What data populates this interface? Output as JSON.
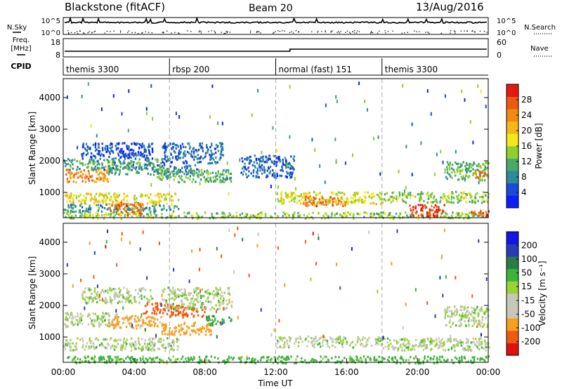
{
  "header": {
    "station": "Blackstone (fitACF)",
    "beam": "Beam 20",
    "date": "13/Aug/2016"
  },
  "left_labels": {
    "nsky": "N.Sky",
    "freq": "Freq.",
    "freq_unit": "[MHz]",
    "cpid": "CPID"
  },
  "right_labels": {
    "nsearch": "N.Search",
    "nave": "Nave"
  },
  "noise_panel": {
    "left_top": "10^5",
    "left_bottom": "10^0",
    "right_top": "10^5",
    "right_bottom": "10^0"
  },
  "freq_panel": {
    "left_ticks": [
      "18",
      "8"
    ],
    "right_ticks": [
      "60",
      "0"
    ]
  },
  "cpid_segments": [
    {
      "label": "themis 3300",
      "start_hour": 0
    },
    {
      "label": "rbsp 200",
      "start_hour": 6
    },
    {
      "label": "normal (fast) 151",
      "start_hour": 12
    },
    {
      "label": "themis 3300",
      "start_hour": 18
    }
  ],
  "colors": {
    "power_scale": [
      "#0b1eff",
      "#1a4ad8",
      "#2d8a9b",
      "#4aa86a",
      "#8fcf2e",
      "#f2e81a",
      "#f5b814",
      "#f08b12",
      "#ec5a10",
      "#e41a10"
    ],
    "velocity_scale": [
      "#e01010",
      "#f05a10",
      "#f7a020",
      "#c8c8b8",
      "#c8c8b8",
      "#9bd23c",
      "#3cb43c",
      "#2a7a4a",
      "#2a3cb4",
      "#1414e6"
    ]
  },
  "chart_data": [
    {
      "type": "heatmap",
      "title": "Power",
      "xlabel": "Time UT",
      "ylabel": "Slant Range [km]",
      "xlim": [
        0,
        24
      ],
      "ylim": [
        200,
        4600
      ],
      "x_ticks": [
        "00:00",
        "04:00",
        "08:00",
        "12:00",
        "16:00",
        "20:00",
        "00:00"
      ],
      "y_ticks": [
        "1000",
        "2000",
        "3000",
        "4000"
      ],
      "colorbar": {
        "label": "Power [dB]",
        "ticks": [
          "4",
          "8",
          "12",
          "16",
          "20",
          "24",
          "28"
        ],
        "range": [
          0,
          32
        ]
      },
      "bands": [
        {
          "t0": 0.0,
          "t1": 2.5,
          "r0": 1350,
          "r1": 1750,
          "value": 24
        },
        {
          "t0": 0.0,
          "t1": 5.5,
          "r0": 1750,
          "r1": 2100,
          "value": 10
        },
        {
          "t0": 1.0,
          "t1": 5.0,
          "r0": 2100,
          "r1": 2600,
          "value": 5
        },
        {
          "t0": 2.5,
          "t1": 7.5,
          "r0": 1600,
          "r1": 1900,
          "value": 9
        },
        {
          "t0": 5.0,
          "t1": 9.5,
          "r0": 1350,
          "r1": 1750,
          "value": 12
        },
        {
          "t0": 5.5,
          "t1": 9.0,
          "r0": 1950,
          "r1": 2600,
          "value": 6
        },
        {
          "t0": 0.0,
          "t1": 6.5,
          "r0": 650,
          "r1": 1000,
          "value": 18
        },
        {
          "t0": 0.0,
          "t1": 6.5,
          "r0": 400,
          "r1": 650,
          "value": 9
        },
        {
          "t0": 2.5,
          "t1": 4.5,
          "r0": 300,
          "r1": 700,
          "value": 26
        },
        {
          "t0": 0.0,
          "t1": 24.0,
          "r0": 200,
          "r1": 400,
          "value": 14
        },
        {
          "t0": 10.0,
          "t1": 13.0,
          "r0": 1500,
          "r1": 2200,
          "value": 6
        },
        {
          "t0": 12.0,
          "t1": 18.0,
          "r0": 650,
          "r1": 1050,
          "value": 17
        },
        {
          "t0": 13.5,
          "t1": 16.0,
          "r0": 600,
          "r1": 900,
          "value": 25
        },
        {
          "t0": 18.0,
          "t1": 24.0,
          "r0": 700,
          "r1": 1050,
          "value": 14
        },
        {
          "t0": 19.5,
          "t1": 21.5,
          "r0": 250,
          "r1": 650,
          "value": 29
        },
        {
          "t0": 21.5,
          "t1": 24.0,
          "r0": 1400,
          "r1": 2000,
          "value": 12
        },
        {
          "t0": 23.2,
          "t1": 24.0,
          "r0": 1450,
          "r1": 1700,
          "value": 24
        },
        {
          "t0": 23.0,
          "t1": 24.0,
          "r0": 250,
          "r1": 450,
          "value": 27
        }
      ]
    },
    {
      "type": "heatmap",
      "title": "Velocity",
      "xlabel": "Time UT",
      "ylabel": "Slant Range [km]",
      "xlim": [
        0,
        24
      ],
      "ylim": [
        200,
        4600
      ],
      "x_ticks": [
        "00:00",
        "04:00",
        "08:00",
        "12:00",
        "16:00",
        "20:00",
        "00:00"
      ],
      "y_ticks": [
        "1000",
        "2000",
        "3000",
        "4000"
      ],
      "colorbar": {
        "label": "Velocity [m s⁻¹]",
        "ticks": [
          "-200",
          "-100",
          "-50",
          "-15",
          "15",
          "50",
          "100",
          "200"
        ],
        "range": [
          -250,
          250
        ]
      },
      "bands": [
        {
          "t0": 0.0,
          "t1": 3.0,
          "r0": 1350,
          "r1": 1800,
          "value": 0
        },
        {
          "t0": 0.0,
          "t1": 6.5,
          "r0": 600,
          "r1": 1000,
          "value": 0
        },
        {
          "t0": 1.0,
          "t1": 5.0,
          "r0": 2100,
          "r1": 2600,
          "value": 0
        },
        {
          "t0": 2.5,
          "t1": 5.5,
          "r0": 1300,
          "r1": 1700,
          "value": -60
        },
        {
          "t0": 4.5,
          "t1": 6.5,
          "r0": 1750,
          "r1": 2100,
          "value": -150
        },
        {
          "t0": 6.0,
          "t1": 8.0,
          "r0": 1650,
          "r1": 2000,
          "value": -170
        },
        {
          "t0": 5.5,
          "t1": 8.5,
          "r0": 1100,
          "r1": 1500,
          "value": -70
        },
        {
          "t0": 5.5,
          "t1": 9.5,
          "r0": 1900,
          "r1": 2600,
          "value": 0
        },
        {
          "t0": 8.0,
          "t1": 9.5,
          "r0": 1400,
          "r1": 1700,
          "value": 40
        },
        {
          "t0": 0.0,
          "t1": 24.0,
          "r0": 200,
          "r1": 420,
          "value": 30
        },
        {
          "t0": 12.0,
          "t1": 18.0,
          "r0": 700,
          "r1": 1050,
          "value": 0
        },
        {
          "t0": 18.0,
          "t1": 24.0,
          "r0": 600,
          "r1": 1000,
          "value": 0
        },
        {
          "t0": 21.5,
          "t1": 24.0,
          "r0": 1350,
          "r1": 2000,
          "value": 0
        }
      ]
    }
  ]
}
